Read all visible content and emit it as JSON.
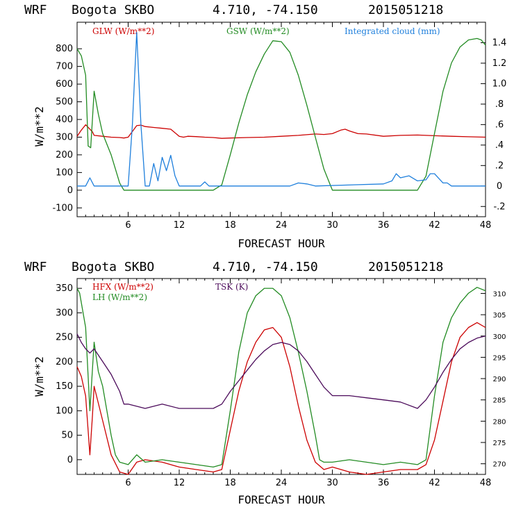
{
  "chart_data": [
    {
      "type": "line",
      "header": {
        "model": "WRF",
        "station": "Bogota SKBO",
        "coords": "4.710, -74.150",
        "run": "2015051218"
      },
      "xlabel": "FORECAST HOUR",
      "ylabel": "W/m**2",
      "xlim": [
        0,
        48
      ],
      "ylim": [
        -150,
        950
      ],
      "y2lim": [
        -0.3,
        1.6
      ],
      "x_ticks": [
        6,
        12,
        18,
        24,
        30,
        36,
        42,
        48
      ],
      "y_ticks": [
        800,
        700,
        600,
        500,
        400,
        300,
        200,
        100,
        0,
        -100
      ],
      "y2_ticks": [
        {
          "v": 1.4,
          "label": "1.4"
        },
        {
          "v": 1.2,
          "label": "1.2"
        },
        {
          "v": 1.0,
          "label": "1.0"
        },
        {
          "v": 0.8,
          "label": ".8"
        },
        {
          "v": 0.6,
          "label": ".6"
        },
        {
          "v": 0.4,
          "label": ".4"
        },
        {
          "v": 0.2,
          "label": ".2"
        },
        {
          "v": 0.0,
          "label": "0"
        },
        {
          "v": -0.2,
          "label": "-.2"
        }
      ],
      "series": [
        {
          "name": "GLW (W/m**2)",
          "color": "#cc0000",
          "axis": "left",
          "x": [
            0,
            0.5,
            1,
            1.8,
            2,
            3,
            4,
            5,
            5.5,
            6,
            7,
            7.5,
            8,
            9,
            10,
            11,
            12,
            12.5,
            13,
            14,
            15,
            16,
            17,
            18,
            20,
            22,
            24,
            26,
            28,
            29,
            30,
            31,
            31.5,
            32,
            33,
            34,
            36,
            38,
            40,
            42,
            44,
            46,
            48
          ],
          "y": [
            305,
            340,
            370,
            330,
            310,
            305,
            300,
            298,
            295,
            300,
            365,
            368,
            360,
            355,
            350,
            345,
            305,
            300,
            305,
            303,
            300,
            298,
            293,
            295,
            298,
            300,
            305,
            310,
            318,
            315,
            320,
            340,
            345,
            335,
            320,
            318,
            305,
            310,
            312,
            308,
            305,
            302,
            300
          ]
        },
        {
          "name": "GSW (W/m**2)",
          "color": "#228b22",
          "axis": "left",
          "x": [
            0,
            0.5,
            1,
            1.3,
            1.6,
            2,
            2.5,
            3,
            4,
            5,
            5.5,
            6,
            16,
            17,
            18,
            19,
            20,
            21,
            22,
            23,
            24,
            25,
            26,
            27,
            28,
            29,
            30,
            40,
            41,
            42,
            43,
            44,
            45,
            46,
            47,
            47.5,
            48
          ],
          "y": [
            800,
            760,
            650,
            250,
            240,
            560,
            430,
            320,
            200,
            40,
            0,
            0,
            0,
            30,
            200,
            380,
            540,
            670,
            770,
            845,
            840,
            780,
            650,
            480,
            300,
            120,
            0,
            0,
            80,
            320,
            560,
            720,
            810,
            850,
            858,
            850,
            820
          ]
        },
        {
          "name": "Integrated cloud (mm)",
          "color": "#1e7fdc",
          "axis": "right",
          "x": [
            0,
            1,
            1.5,
            2,
            6,
            6.5,
            7,
            7.5,
            8,
            8.5,
            9,
            9.5,
            10,
            10.5,
            11,
            11.5,
            12,
            14.5,
            15,
            15.5,
            16,
            22,
            25,
            26,
            27,
            28,
            36,
            37,
            37.5,
            38,
            39,
            40,
            41,
            41.5,
            42,
            43,
            43.5,
            44,
            48
          ],
          "y": [
            0,
            0,
            0.08,
            0,
            0,
            0.6,
            1.5,
            0.6,
            0,
            0,
            0.22,
            0.05,
            0.28,
            0.15,
            0.3,
            0.1,
            0,
            0,
            0.04,
            0,
            0,
            0,
            0,
            0.03,
            0.02,
            0,
            0.02,
            0.05,
            0.12,
            0.08,
            0.1,
            0.05,
            0.06,
            0.12,
            0.12,
            0.03,
            0.03,
            0,
            0
          ]
        }
      ]
    },
    {
      "type": "line",
      "header": {
        "model": "WRF",
        "station": "Bogota SKBO",
        "coords": "4.710, -74.150",
        "run": "2015051218"
      },
      "xlabel": "FORECAST HOUR",
      "ylabel": "W/m**2",
      "xlim": [
        0,
        48
      ],
      "ylim": [
        -30,
        370
      ],
      "y2lim": [
        267.5,
        313.5
      ],
      "x_ticks": [
        6,
        12,
        18,
        24,
        30,
        36,
        42,
        48
      ],
      "y_ticks": [
        350,
        300,
        250,
        200,
        150,
        100,
        50,
        0
      ],
      "y2_ticks": [
        {
          "v": 310,
          "label": "310"
        },
        {
          "v": 305,
          "label": "305"
        },
        {
          "v": 300,
          "label": "300"
        },
        {
          "v": 295,
          "label": "295"
        },
        {
          "v": 290,
          "label": "290"
        },
        {
          "v": 285,
          "label": "285"
        },
        {
          "v": 280,
          "label": "280"
        },
        {
          "v": 275,
          "label": "275"
        },
        {
          "v": 270,
          "label": "270"
        }
      ],
      "series": [
        {
          "name": "HFX (W/m**2)",
          "color": "#cc0000",
          "axis": "left",
          "x": [
            0,
            0.5,
            1,
            1.5,
            1.8,
            2,
            3,
            4,
            5,
            6,
            7,
            8,
            10,
            12,
            14,
            16,
            17,
            18,
            19,
            20,
            21,
            22,
            23,
            24,
            25,
            26,
            27,
            28,
            29,
            30,
            32,
            34,
            36,
            38,
            40,
            41,
            42,
            43,
            44,
            45,
            46,
            47,
            48
          ],
          "y": [
            190,
            170,
            130,
            10,
            90,
            150,
            80,
            10,
            -25,
            -30,
            -5,
            0,
            -5,
            -15,
            -20,
            -25,
            -20,
            60,
            140,
            200,
            240,
            265,
            270,
            250,
            190,
            110,
            40,
            -5,
            -20,
            -15,
            -25,
            -30,
            -25,
            -20,
            -20,
            -10,
            40,
            120,
            200,
            250,
            270,
            280,
            270
          ]
        },
        {
          "name": "LH (W/m**2)",
          "color": "#228b22",
          "axis": "left",
          "x": [
            0,
            0.3,
            1,
            1.5,
            2,
            2.5,
            3,
            3.5,
            4,
            4.5,
            5,
            6,
            7,
            8,
            10,
            12,
            14,
            16,
            17,
            18,
            19,
            20,
            21,
            22,
            23,
            24,
            25,
            26,
            27,
            28,
            28.5,
            29,
            30,
            32,
            34,
            36,
            38,
            40,
            41,
            42,
            43,
            44,
            45,
            46,
            47,
            48
          ],
          "y": [
            350,
            340,
            270,
            100,
            240,
            180,
            150,
            100,
            50,
            10,
            -5,
            -10,
            10,
            -5,
            0,
            -5,
            -10,
            -15,
            -10,
            100,
            220,
            300,
            335,
            350,
            350,
            335,
            290,
            220,
            140,
            50,
            0,
            -5,
            -5,
            0,
            -5,
            -10,
            -5,
            -10,
            0,
            130,
            240,
            290,
            320,
            340,
            352,
            345
          ]
        },
        {
          "name": "TSK (K)",
          "color": "#4b0a5a",
          "axis": "right",
          "x": [
            0,
            0.5,
            1,
            1.5,
            2,
            3,
            4,
            5,
            5.5,
            6,
            8,
            10,
            12,
            14,
            16,
            17,
            18,
            19,
            20,
            21,
            22,
            23,
            24,
            25,
            26,
            27,
            28,
            29,
            30,
            32,
            34,
            36,
            38,
            40,
            41,
            42,
            43,
            44,
            45,
            46,
            47,
            48
          ],
          "y": [
            300.5,
            298.5,
            297,
            296,
            297,
            294,
            291,
            287,
            284,
            284,
            283,
            284,
            283,
            283,
            283,
            284,
            287,
            289.5,
            292,
            294.5,
            296.5,
            298,
            298.5,
            298,
            296.5,
            294,
            291,
            288,
            286,
            286,
            285.5,
            285,
            284.5,
            283,
            285,
            288,
            291.5,
            294.5,
            297,
            298.5,
            299.5,
            300
          ]
        }
      ]
    }
  ]
}
